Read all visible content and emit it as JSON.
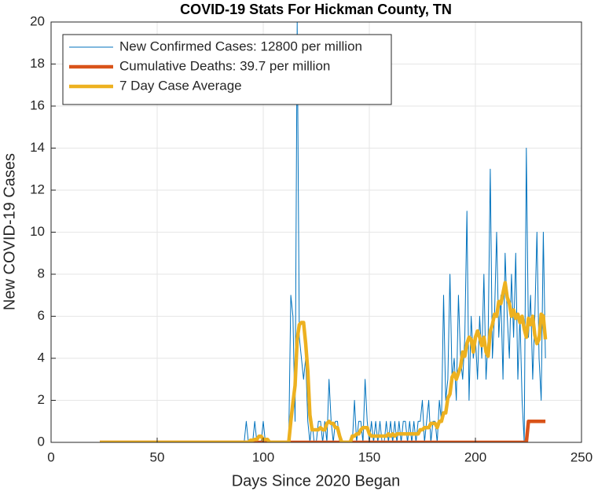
{
  "chart_data": {
    "type": "line",
    "title": "COVID-19 Stats For Hickman County, TN",
    "xlabel": "Days Since 2020 Began",
    "ylabel": "New COVID-19 Cases",
    "xlim": [
      0,
      250
    ],
    "xticks": [
      0,
      50,
      100,
      150,
      200,
      250
    ],
    "ylim": [
      0,
      20
    ],
    "yticks": [
      0,
      2,
      4,
      6,
      8,
      10,
      12,
      14,
      16,
      18,
      20
    ],
    "grid": true,
    "legend": "northwest",
    "x": [
      23,
      24,
      25,
      26,
      27,
      28,
      29,
      30,
      31,
      32,
      33,
      34,
      35,
      36,
      37,
      38,
      39,
      40,
      41,
      42,
      43,
      44,
      45,
      46,
      47,
      48,
      49,
      50,
      51,
      52,
      53,
      54,
      55,
      56,
      57,
      58,
      59,
      60,
      61,
      62,
      63,
      64,
      65,
      66,
      67,
      68,
      69,
      70,
      71,
      72,
      73,
      74,
      75,
      76,
      77,
      78,
      79,
      80,
      81,
      82,
      83,
      84,
      85,
      86,
      87,
      88,
      89,
      90,
      91,
      92,
      93,
      94,
      95,
      96,
      97,
      98,
      99,
      100,
      101,
      102,
      103,
      104,
      105,
      106,
      107,
      108,
      109,
      110,
      111,
      112,
      113,
      114,
      115,
      116,
      117,
      118,
      119,
      120,
      121,
      122,
      123,
      124,
      125,
      126,
      127,
      128,
      129,
      130,
      131,
      132,
      133,
      134,
      135,
      136,
      137,
      138,
      139,
      140,
      141,
      142,
      143,
      144,
      145,
      146,
      147,
      148,
      149,
      150,
      151,
      152,
      153,
      154,
      155,
      156,
      157,
      158,
      159,
      160,
      161,
      162,
      163,
      164,
      165,
      166,
      167,
      168,
      169,
      170,
      171,
      172,
      173,
      174,
      175,
      176,
      177,
      178,
      179,
      180,
      181,
      182,
      183,
      184,
      185,
      186,
      187,
      188,
      189,
      190,
      191,
      192,
      193,
      194,
      195,
      196,
      197,
      198,
      199,
      200,
      201,
      202,
      203,
      204,
      205,
      206,
      207,
      208,
      209,
      210,
      211,
      212,
      213,
      214,
      215,
      216,
      217,
      218,
      219,
      220,
      221,
      222,
      223,
      224,
      225,
      226,
      227,
      228,
      229,
      230,
      231,
      232,
      233
    ],
    "series": [
      {
        "name": "New Confirmed Cases: 12800 per million",
        "color": "#0072bd",
        "width": 1,
        "values": [
          0,
          0,
          0,
          0,
          0,
          0,
          0,
          0,
          0,
          0,
          0,
          0,
          0,
          0,
          0,
          0,
          0,
          0,
          0,
          0,
          0,
          0,
          0,
          0,
          0,
          0,
          0,
          0,
          0,
          0,
          0,
          0,
          0,
          0,
          0,
          0,
          0,
          0,
          0,
          0,
          0,
          0,
          0,
          0,
          0,
          0,
          0,
          0,
          0,
          0,
          0,
          0,
          0,
          0,
          0,
          0,
          0,
          0,
          0,
          0,
          0,
          0,
          0,
          0,
          0,
          0,
          0,
          0,
          0,
          1,
          0,
          0,
          0,
          1,
          0,
          0,
          0,
          1,
          0,
          0,
          0,
          0,
          0,
          0,
          0,
          0,
          0,
          0,
          0,
          0,
          7,
          6,
          1,
          20,
          5,
          4,
          3,
          4,
          1,
          0,
          1,
          0,
          0,
          1,
          1,
          0,
          1,
          0,
          3,
          1,
          0,
          1,
          1,
          0,
          0,
          0,
          0,
          0,
          0,
          0,
          2,
          0,
          1,
          1,
          0,
          3,
          1,
          0,
          1,
          0,
          1,
          0,
          1,
          0,
          0,
          1,
          0,
          1,
          0,
          1,
          0,
          1,
          0,
          1,
          1,
          0,
          1,
          0,
          1,
          0,
          1,
          1,
          2,
          0,
          1,
          2,
          0,
          1,
          1,
          0,
          2,
          1,
          7,
          2,
          3,
          8,
          3,
          4,
          2,
          7,
          4,
          3,
          5,
          11,
          2,
          6,
          4,
          5,
          3,
          6,
          4,
          8,
          3,
          5,
          13,
          4,
          6,
          10,
          5,
          7,
          3,
          9,
          6,
          4,
          8,
          5,
          9,
          3,
          6,
          2,
          0,
          14,
          5,
          7,
          3,
          6,
          10,
          4,
          2,
          10,
          4
        ]
      },
      {
        "name": "Cumulative Deaths: 39.7 per million",
        "color": "#d95319",
        "width": 4.5,
        "values": [
          0,
          0,
          0,
          0,
          0,
          0,
          0,
          0,
          0,
          0,
          0,
          0,
          0,
          0,
          0,
          0,
          0,
          0,
          0,
          0,
          0,
          0,
          0,
          0,
          0,
          0,
          0,
          0,
          0,
          0,
          0,
          0,
          0,
          0,
          0,
          0,
          0,
          0,
          0,
          0,
          0,
          0,
          0,
          0,
          0,
          0,
          0,
          0,
          0,
          0,
          0,
          0,
          0,
          0,
          0,
          0,
          0,
          0,
          0,
          0,
          0,
          0,
          0,
          0,
          0,
          0,
          0,
          0,
          0,
          0,
          0,
          0,
          0,
          0,
          0,
          0,
          0,
          0,
          0,
          0,
          0,
          0,
          0,
          0,
          0,
          0,
          0,
          0,
          0,
          0,
          0,
          0,
          0,
          0,
          0,
          0,
          0,
          0,
          0,
          0,
          0,
          0,
          0,
          0,
          0,
          0,
          0,
          0,
          0,
          0,
          0,
          0,
          0,
          0,
          0,
          0,
          0,
          0,
          0,
          0,
          0,
          0,
          0,
          0,
          0,
          0,
          0,
          0,
          0,
          0,
          0,
          0,
          0,
          0,
          0,
          0,
          0,
          0,
          0,
          0,
          0,
          0,
          0,
          0,
          0,
          0,
          0,
          0,
          0,
          0,
          0,
          0,
          0,
          0,
          0,
          0,
          0,
          0,
          0,
          0,
          0,
          0,
          0,
          0,
          0,
          0,
          0,
          0,
          0,
          0,
          0,
          0,
          0,
          0,
          0,
          0,
          0,
          0,
          0,
          0,
          0,
          0,
          0,
          0,
          0,
          0,
          0,
          0,
          0,
          0,
          0,
          0,
          0,
          0,
          0,
          0,
          0,
          0,
          0,
          0,
          0,
          0,
          1,
          1,
          1,
          1,
          1,
          1,
          1,
          1,
          1
        ]
      },
      {
        "name": "7 Day Case Average",
        "color": "#edb120",
        "width": 4.5,
        "values": [
          0,
          0,
          0,
          0,
          0,
          0,
          0,
          0,
          0,
          0,
          0,
          0,
          0,
          0,
          0,
          0,
          0,
          0,
          0,
          0,
          0,
          0,
          0,
          0,
          0,
          0,
          0,
          0,
          0,
          0,
          0,
          0,
          0,
          0,
          0,
          0,
          0,
          0,
          0,
          0,
          0,
          0,
          0,
          0,
          0,
          0,
          0,
          0,
          0,
          0,
          0,
          0,
          0,
          0,
          0,
          0,
          0,
          0,
          0,
          0,
          0,
          0,
          0,
          0,
          0,
          0,
          0,
          0,
          0,
          0,
          0,
          0.1,
          0.1,
          0.14,
          0.14,
          0.29,
          0.29,
          0.14,
          0.14,
          0.14,
          0,
          0,
          0,
          0,
          0,
          0,
          0,
          0,
          0,
          0,
          1,
          1.9,
          2.7,
          4.9,
          5.6,
          5.7,
          5.7,
          4.7,
          3.4,
          1.3,
          0.6,
          0.6,
          0.6,
          0.6,
          0.7,
          0.6,
          0.6,
          0.9,
          1,
          0.9,
          0.9,
          0.7,
          0.7,
          0.3,
          0,
          0,
          0,
          0,
          0,
          0.3,
          0.3,
          0.4,
          0.4,
          0.6,
          0.7,
          0.7,
          0.7,
          0.4,
          0.3,
          0.3,
          0.3,
          0.3,
          0.3,
          0.3,
          0.3,
          0.3,
          0.4,
          0.3,
          0.4,
          0.3,
          0.4,
          0.4,
          0.4,
          0.4,
          0.4,
          0.4,
          0.4,
          0.4,
          0.4,
          0.4,
          0.4,
          0.6,
          0.6,
          0.7,
          0.7,
          0.7,
          0.9,
          0.9,
          0.9,
          0.7,
          1,
          1,
          1.4,
          1.4,
          2.1,
          2.3,
          3.1,
          3.3,
          3,
          3.3,
          3.6,
          4.3,
          4.1,
          4.7,
          5,
          4.9,
          4.3,
          5,
          5.3,
          5,
          4.6,
          5,
          4.3,
          4.1,
          5.3,
          5.6,
          6.1,
          6,
          6.7,
          6.6,
          7.1,
          7.6,
          6.9,
          6.6,
          6,
          6.3,
          5.9,
          6.1,
          5.7,
          6,
          5.4,
          5,
          5.9,
          5.6,
          6,
          5.1,
          4.7,
          4.9,
          6.1,
          6,
          4.9
        ]
      }
    ]
  }
}
